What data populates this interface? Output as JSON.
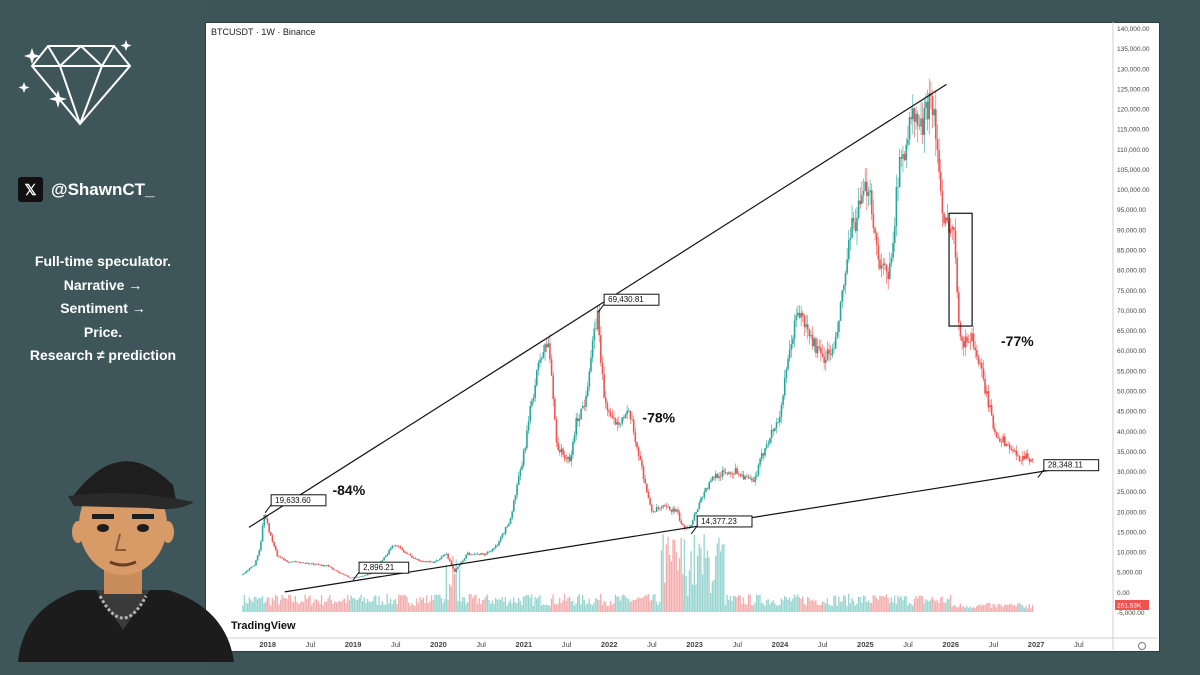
{
  "profile": {
    "handle": "@ShawnCT_",
    "bio_lines": [
      "Full-time speculator.",
      "Narrative →",
      "Sentiment →",
      "Price.",
      "Research ≠ prediction"
    ],
    "icons": [
      "diamond-logo-icon",
      "x-logo-icon",
      "avatar-illustration"
    ]
  },
  "chart_header": {
    "symbol_line": "BTCUSDT · 1W · Binance",
    "watermark": "TradingView"
  },
  "chart_data": {
    "type": "line",
    "title": "BTCUSDT · 1W · Binance",
    "xlabel": "",
    "ylabel": "",
    "ylim": [
      -5000,
      140000
    ],
    "y_ticks": [
      "140,000.00",
      "135,000.00",
      "130,000.00",
      "125,000.00",
      "120,000.00",
      "115,000.00",
      "110,000.00",
      "105,000.00",
      "100,000.00",
      "95,000.00",
      "90,000.00",
      "85,000.00",
      "80,000.00",
      "75,000.00",
      "70,000.00",
      "65,000.00",
      "60,000.00",
      "55,000.00",
      "50,000.00",
      "45,000.00",
      "40,000.00",
      "35,000.00",
      "30,000.00",
      "25,000.00",
      "20,000.00",
      "15,000.00",
      "10,000.00",
      "5,000.00",
      "0.00",
      "-5,000.00"
    ],
    "x_ticks": [
      "2018",
      "Jul",
      "2019",
      "Jul",
      "2020",
      "Jul",
      "2021",
      "Jul",
      "2022",
      "Jul",
      "2023",
      "Jul",
      "2024",
      "Jul",
      "2025",
      "Jul",
      "2026",
      "Jul",
      "2027",
      "Jul"
    ],
    "x_tick_values": [
      2018.0,
      2018.5,
      2019.0,
      2019.5,
      2020.0,
      2020.5,
      2021.0,
      2021.5,
      2022.0,
      2022.5,
      2023.0,
      2023.5,
      2024.0,
      2024.5,
      2025.0,
      2025.5,
      2026.0,
      2026.5,
      2027.0,
      2027.5
    ],
    "x_range": [
      2017.5,
      2027.9
    ],
    "series": [
      {
        "points": [
          [
            2017.7,
            4200
          ],
          [
            2017.85,
            6500
          ],
          [
            2017.92,
            11000
          ],
          [
            2017.97,
            19633
          ],
          [
            2018.05,
            13500
          ],
          [
            2018.12,
            9000
          ],
          [
            2018.25,
            7500
          ],
          [
            2018.4,
            7300
          ],
          [
            2018.55,
            6800
          ],
          [
            2018.7,
            6500
          ],
          [
            2018.85,
            4800
          ],
          [
            2018.97,
            3500
          ],
          [
            2019.05,
            3600
          ],
          [
            2019.2,
            4500
          ],
          [
            2019.35,
            8000
          ],
          [
            2019.5,
            12000
          ],
          [
            2019.6,
            10000
          ],
          [
            2019.75,
            8000
          ],
          [
            2019.95,
            7200
          ],
          [
            2020.1,
            9500
          ],
          [
            2020.2,
            5000
          ],
          [
            2020.35,
            9500
          ],
          [
            2020.55,
            9300
          ],
          [
            2020.7,
            11500
          ],
          [
            2020.85,
            18000
          ],
          [
            2021.0,
            33000
          ],
          [
            2021.1,
            47000
          ],
          [
            2021.2,
            58000
          ],
          [
            2021.3,
            62000
          ],
          [
            2021.4,
            36000
          ],
          [
            2021.55,
            32000
          ],
          [
            2021.62,
            42000
          ],
          [
            2021.72,
            47000
          ],
          [
            2021.85,
            66000
          ],
          [
            2021.87,
            69430
          ],
          [
            2021.95,
            48000
          ],
          [
            2022.05,
            42000
          ],
          [
            2022.25,
            44000
          ],
          [
            2022.4,
            30000
          ],
          [
            2022.5,
            20000
          ],
          [
            2022.65,
            21000
          ],
          [
            2022.8,
            20000
          ],
          [
            2022.87,
            16000
          ],
          [
            2022.96,
            16500
          ],
          [
            2023.1,
            24000
          ],
          [
            2023.25,
            29000
          ],
          [
            2023.5,
            30000
          ],
          [
            2023.7,
            27000
          ],
          [
            2023.85,
            37000
          ],
          [
            2024.0,
            43000
          ],
          [
            2024.15,
            63000
          ],
          [
            2024.22,
            70000
          ],
          [
            2024.35,
            64000
          ],
          [
            2024.5,
            58000
          ],
          [
            2024.65,
            60000
          ],
          [
            2024.85,
            90000
          ],
          [
            2024.96,
            96000
          ],
          [
            2025.05,
            102000
          ],
          [
            2025.15,
            84000
          ],
          [
            2025.28,
            77000
          ],
          [
            2025.4,
            104000
          ],
          [
            2025.55,
            118000
          ],
          [
            2025.68,
            115000
          ],
          [
            2025.78,
            125000
          ],
          [
            2025.85,
            111000
          ],
          [
            2025.92,
            90000
          ],
          [
            2026.0,
            92000
          ],
          [
            2026.06,
            87000
          ],
          [
            2026.1,
            69000
          ],
          [
            2026.15,
            61000
          ],
          [
            2026.25,
            64000
          ],
          [
            2026.35,
            56000
          ],
          [
            2026.45,
            47000
          ],
          [
            2026.52,
            40000
          ],
          [
            2026.6,
            38000
          ],
          [
            2026.7,
            36000
          ],
          [
            2026.8,
            33000
          ],
          [
            2026.88,
            34000
          ],
          [
            2026.95,
            33000
          ]
        ],
        "color_up": "#26a69a",
        "color_down": "#ef5350"
      }
    ],
    "price_labels": [
      {
        "text": "19,633.60",
        "x": 2017.97,
        "y": 19633
      },
      {
        "text": "69,430.81",
        "x": 2021.87,
        "y": 69430
      },
      {
        "text": "2,896.21",
        "x": 2019.0,
        "y": 2896
      },
      {
        "text": "14,377.23",
        "x": 2022.96,
        "y": 14377
      },
      {
        "text": "28,348.11",
        "x": 2027.02,
        "y": 28348
      }
    ],
    "annotations": [
      {
        "text": "-84%",
        "x": 2018.95,
        "y": 24000
      },
      {
        "text": "-78%",
        "x": 2022.58,
        "y": 42000
      },
      {
        "text": "-77%",
        "x": 2026.78,
        "y": 61000
      }
    ],
    "trendlines": [
      {
        "from": [
          2017.78,
          16000
        ],
        "to": [
          2025.95,
          126000
        ]
      },
      {
        "from": [
          2018.2,
          0
        ],
        "to": [
          2027.4,
          31000
        ]
      }
    ],
    "highlight_box": {
      "x0": 2025.98,
      "x1": 2026.25,
      "y0": 66000,
      "y1": 94000
    },
    "volume_bars_max_y": 20000,
    "corner_readout": "261.53K",
    "grid": false,
    "colors": {
      "up": "#26a69a",
      "down": "#ef5350",
      "axis": "#333333",
      "volume_up": "#80cbc4",
      "volume_down": "#ef9a9a"
    }
  }
}
